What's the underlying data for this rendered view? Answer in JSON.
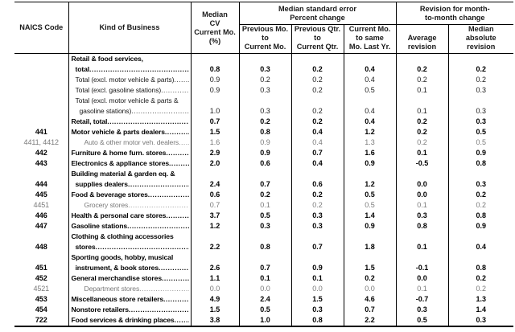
{
  "table": {
    "leader": "....................................................................................................................",
    "header": {
      "naics": "NAICS Code",
      "kind": "Kind of Business",
      "median_cv": "Median\nCV\nCurrent Mo.\n(%)",
      "group_se": "Median standard error\nPercent change",
      "group_rev": "Revision for month-\nto-month change",
      "se_prev_mo": "Previous Mo.\nto\nCurrent Mo.",
      "se_prev_qtr": "Previous Qtr.\nto\nCurrent Qtr.",
      "se_curr_yr": "Current Mo.\nto same\nMo. Last Yr.",
      "avg_rev": "Average\nrevision",
      "med_abs_rev": "Median\nabsolute\nrevision"
    },
    "rows": [
      {
        "naics": "",
        "bold": true,
        "gray": false,
        "lines": [
          {
            "text": "Retail & food services,",
            "indent": 0,
            "dots": false
          },
          {
            "text": "total",
            "indent": 1,
            "dots": true
          }
        ],
        "values": [
          "0.8",
          "0.3",
          "0.2",
          "0.4",
          "0.2",
          "0.2"
        ]
      },
      {
        "naics": "",
        "bold": false,
        "gray": false,
        "lines": [
          {
            "text": "Total (excl. motor vehicle & parts)",
            "indent": 1,
            "dots": true
          }
        ],
        "values": [
          "0.9",
          "0.2",
          "0.2",
          "0.4",
          "0.2",
          "0.2"
        ]
      },
      {
        "naics": "",
        "bold": false,
        "gray": false,
        "lines": [
          {
            "text": "Total (excl. gasoline stations)",
            "indent": 1,
            "dots": true
          }
        ],
        "values": [
          "0.9",
          "0.3",
          "0.2",
          "0.5",
          "0.1",
          "0.3"
        ]
      },
      {
        "naics": "",
        "bold": false,
        "gray": false,
        "lines": [
          {
            "text": "Total (excl. motor vehicle & parts &",
            "indent": 1,
            "dots": false
          },
          {
            "text": "gasoline stations)",
            "indent": 2,
            "dots": true
          }
        ],
        "values": [
          "1.0",
          "0.3",
          "0.2",
          "0.4",
          "0.1",
          "0.3"
        ]
      },
      {
        "naics": "",
        "bold": true,
        "gray": false,
        "lines": [
          {
            "text": "Retail, total",
            "indent": 0,
            "dots": true
          }
        ],
        "values": [
          "0.7",
          "0.2",
          "0.2",
          "0.4",
          "0.2",
          "0.3"
        ]
      },
      {
        "naics": "441",
        "bold": true,
        "gray": false,
        "lines": [
          {
            "text": "Motor vehicle & parts dealers",
            "indent": 0,
            "dots": true
          }
        ],
        "values": [
          "1.5",
          "0.8",
          "0.4",
          "1.2",
          "0.2",
          "0.5"
        ]
      },
      {
        "naics": "4411, 4412",
        "bold": false,
        "gray": true,
        "lines": [
          {
            "text": "Auto & other motor veh. dealers",
            "indent": 3,
            "dots": true
          }
        ],
        "values": [
          "1.6",
          "0.9",
          "0.4",
          "1.3",
          "0.2",
          "0.5"
        ]
      },
      {
        "naics": "442",
        "bold": true,
        "gray": false,
        "lines": [
          {
            "text": "Furniture & home furn. stores",
            "indent": 0,
            "dots": true
          }
        ],
        "values": [
          "2.9",
          "0.9",
          "0.7",
          "1.6",
          "0.1",
          "0.9"
        ]
      },
      {
        "naics": "443",
        "bold": true,
        "gray": false,
        "lines": [
          {
            "text": "Electronics & appliance stores",
            "indent": 0,
            "dots": true
          }
        ],
        "values": [
          "2.0",
          "0.6",
          "0.4",
          "0.9",
          "-0.5",
          "0.8"
        ]
      },
      {
        "naics": "444",
        "bold": true,
        "gray": false,
        "lines": [
          {
            "text": "Building material & garden eq. &",
            "indent": 0,
            "dots": false
          },
          {
            "text": "supplies dealers",
            "indent": 1,
            "dots": true
          }
        ],
        "values": [
          "2.4",
          "0.7",
          "0.6",
          "1.2",
          "0.0",
          "0.3"
        ]
      },
      {
        "naics": "445",
        "bold": true,
        "gray": false,
        "lines": [
          {
            "text": "Food & beverage stores",
            "indent": 0,
            "dots": true
          }
        ],
        "values": [
          "0.6",
          "0.2",
          "0.2",
          "0.5",
          "0.0",
          "0.2"
        ]
      },
      {
        "naics": "4451",
        "bold": false,
        "gray": true,
        "lines": [
          {
            "text": "Grocery stores",
            "indent": 3,
            "dots": true
          }
        ],
        "values": [
          "0.7",
          "0.1",
          "0.2",
          "0.5",
          "0.1",
          "0.2"
        ]
      },
      {
        "naics": "446",
        "bold": true,
        "gray": false,
        "lines": [
          {
            "text": "Health & personal care stores",
            "indent": 0,
            "dots": true
          }
        ],
        "values": [
          "3.7",
          "0.5",
          "0.3",
          "1.4",
          "0.3",
          "0.8"
        ]
      },
      {
        "naics": "447",
        "bold": true,
        "gray": false,
        "lines": [
          {
            "text": "Gasoline stations",
            "indent": 0,
            "dots": true
          }
        ],
        "values": [
          "1.2",
          "0.3",
          "0.3",
          "0.9",
          "0.8",
          "0.9"
        ]
      },
      {
        "naics": "448",
        "bold": true,
        "gray": false,
        "lines": [
          {
            "text": "Clothing & clothing accessories",
            "indent": 0,
            "dots": false
          },
          {
            "text": "stores",
            "indent": 1,
            "dots": true
          }
        ],
        "values": [
          "2.2",
          "0.8",
          "0.7",
          "1.8",
          "0.1",
          "0.4"
        ]
      },
      {
        "naics": "451",
        "bold": true,
        "gray": false,
        "lines": [
          {
            "text": "Sporting goods, hobby, musical",
            "indent": 0,
            "dots": false
          },
          {
            "text": "instrument, & book stores",
            "indent": 1,
            "dots": true
          }
        ],
        "values": [
          "2.6",
          "0.7",
          "0.9",
          "1.5",
          "-0.1",
          "0.8"
        ]
      },
      {
        "naics": "452",
        "bold": true,
        "gray": false,
        "lines": [
          {
            "text": "General merchandise stores",
            "indent": 0,
            "dots": true
          }
        ],
        "values": [
          "1.1",
          "0.1",
          "0.1",
          "0.2",
          "0.0",
          "0.2"
        ]
      },
      {
        "naics": "4521",
        "bold": false,
        "gray": true,
        "lines": [
          {
            "text": "Department stores",
            "indent": 3,
            "dots": true
          }
        ],
        "values": [
          "0.0",
          "0.0",
          "0.0",
          "0.0",
          "0.1",
          "0.2"
        ]
      },
      {
        "naics": "453",
        "bold": true,
        "gray": false,
        "lines": [
          {
            "text": "Miscellaneous store retailers",
            "indent": 0,
            "dots": true
          }
        ],
        "values": [
          "4.9",
          "2.4",
          "1.5",
          "4.6",
          "-0.7",
          "1.3"
        ]
      },
      {
        "naics": "454",
        "bold": true,
        "gray": false,
        "lines": [
          {
            "text": "Nonstore retailers",
            "indent": 0,
            "dots": true
          }
        ],
        "values": [
          "1.5",
          "0.5",
          "0.3",
          "0.7",
          "0.3",
          "1.4"
        ]
      },
      {
        "naics": "722",
        "bold": true,
        "gray": false,
        "lines": [
          {
            "text": "Food services & drinking places",
            "indent": 0,
            "dots": true
          }
        ],
        "values": [
          "3.8",
          "1.0",
          "0.8",
          "2.2",
          "0.5",
          "0.3"
        ]
      }
    ]
  }
}
